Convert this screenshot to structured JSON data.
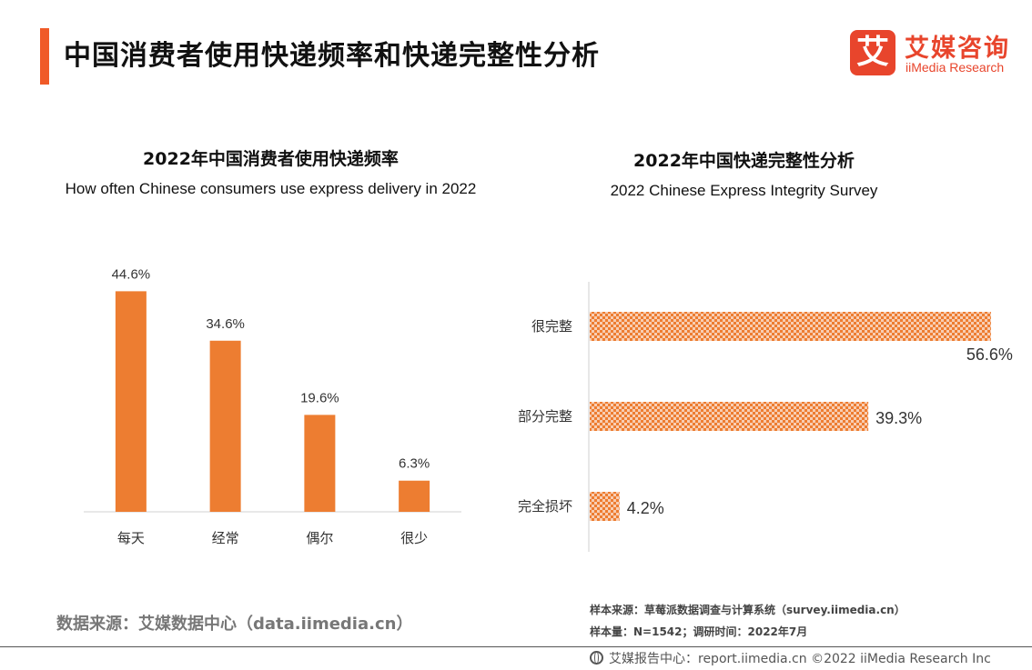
{
  "header": {
    "title": "中国消费者使用快递频率和快递完整性分析",
    "logo_cn": "艾媒咨询",
    "logo_en": "iiMedia Research",
    "logo_mark": "艾"
  },
  "colors": {
    "accent": "#f05a28",
    "bar_fill": "#ed7d31",
    "pattern_light": "#f8cdb2"
  },
  "chart_data": [
    {
      "type": "bar",
      "title": "2022年中国消费者使用快递频率",
      "subtitle": "How often Chinese consumers use express delivery in 2022",
      "categories": [
        "每天",
        "经常",
        "偶尔",
        "很少"
      ],
      "values": [
        44.6,
        34.6,
        19.6,
        6.3
      ],
      "data_labels": [
        "44.6%",
        "34.6%",
        "19.6%",
        "6.3%"
      ],
      "unit": "%",
      "ylim": [
        0,
        50
      ],
      "grid": false,
      "legend": "none"
    },
    {
      "type": "bar",
      "orientation": "horizontal",
      "title": "2022年中国快递完整性分析",
      "subtitle": "2022 Chinese Express Integrity Survey",
      "categories": [
        "很完整",
        "部分完整",
        "完全损坏"
      ],
      "values": [
        56.6,
        39.3,
        4.2
      ],
      "data_labels": [
        "56.6%",
        "39.3%",
        "4.2%"
      ],
      "unit": "%",
      "xlim": [
        0,
        57
      ],
      "grid": false,
      "legend": "none"
    }
  ],
  "footer": {
    "source_left": "数据来源：艾媒数据中心（data.iimedia.cn）",
    "sample_source": "样本来源：草莓派数据调查与计算系统（survey.iimedia.cn）",
    "sample_size": "样本量：N=1542；调研时间：2022年7月",
    "report_center": "艾媒报告中心：report.iimedia.cn  ©2022  iiMedia Research  Inc"
  }
}
